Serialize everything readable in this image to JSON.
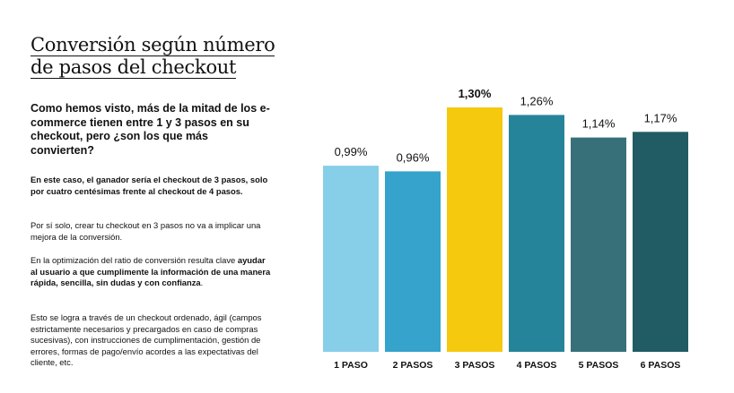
{
  "title_line1": "Conversión según número",
  "title_line2": "de pasos del checkout",
  "lead": "Como hemos visto, más de la mitad de los e-commerce tienen entre 1 y 3 pasos en su checkout, pero ¿son los que más convierten?",
  "p1": "En este caso, el ganador sería el checkout de 3 pasos, solo por cuatro centésimas frente al checkout de 4 pasos.",
  "p2": "Por sí solo, crear tu checkout en 3 pasos no va a implicar una mejora de la conversión.",
  "p3_a": "En la optimización del ratio de conversión resulta clave ",
  "p3_b": "ayudar al usuario a que cumplimente la información de una manera rápida, sencilla, sin dudas y con confianza",
  "p3_c": ".",
  "p4": "Esto se logra a través de un checkout ordenado, ágil (campos estrictamente necesarios y precargados en caso de compras sucesivas), con instrucciones de cumplimentación, gestión de errores, formas de pago/envío acordes a las expectativas del cliente, etc.",
  "chart_data": {
    "type": "bar",
    "title": "Conversión según número de pasos del checkout",
    "categories": [
      "1 PASO",
      "2 PASOS",
      "3 PASOS",
      "4 PASOS",
      "5 PASOS",
      "6 PASOS"
    ],
    "values": [
      0.99,
      0.96,
      1.3,
      1.26,
      1.14,
      1.17
    ],
    "labels": [
      "0,99%",
      "0,96%",
      "1,30%",
      "1,26%",
      "1,14%",
      "1,17%"
    ],
    "highlight_index": 2,
    "colors": [
      "#87cee8",
      "#35a3cc",
      "#f5c90d",
      "#25849a",
      "#377079",
      "#215b64"
    ],
    "xlabel": "",
    "ylabel": "",
    "ylim": [
      0,
      1.3
    ],
    "grid": false,
    "legend": "none"
  }
}
